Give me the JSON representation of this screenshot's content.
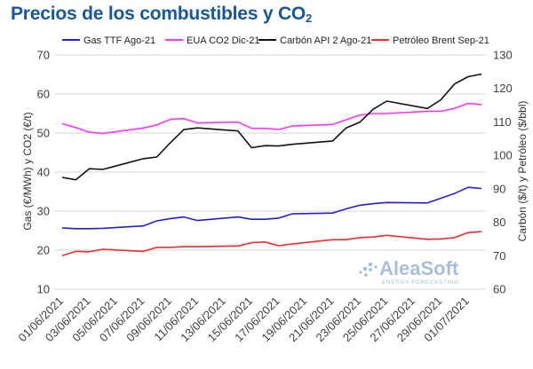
{
  "title_main": "Precios de los combustibles y CO",
  "title_sub": "2",
  "watermark": {
    "name": "AleaSoft",
    "tagline": "ENERGY FORECASTING"
  },
  "colors": {
    "gas": "#1f1fe0",
    "eua": "#ff33ff",
    "coal": "#111111",
    "brent": "#ff2a2a",
    "grid": "#d6d6d6",
    "title": "#17579e"
  },
  "chart_data": {
    "type": "line",
    "title": "Precios de los combustibles y CO2",
    "ylabel_left": "Gas (€/MWh) y CO2 (€/t)",
    "ylabel_right": "Carbón ($/t) y Petróleo ($/bbl)",
    "ylim_left": [
      10,
      70
    ],
    "ylim_right": [
      60,
      130
    ],
    "yticks_left": [
      10,
      20,
      30,
      40,
      50,
      60,
      70
    ],
    "yticks_right": [
      60,
      70,
      80,
      90,
      100,
      110,
      120,
      130
    ],
    "grid": true,
    "legend_position": "top",
    "x": [
      "01/06/2021",
      "02/06/2021",
      "03/06/2021",
      "04/06/2021",
      "07/06/2021",
      "08/06/2021",
      "09/06/2021",
      "10/06/2021",
      "11/06/2021",
      "14/06/2021",
      "15/06/2021",
      "16/06/2021",
      "17/06/2021",
      "18/06/2021",
      "21/06/2021",
      "22/06/2021",
      "23/06/2021",
      "24/06/2021",
      "25/06/2021",
      "28/06/2021",
      "29/06/2021",
      "30/06/2021",
      "01/07/2021",
      "02/07/2021"
    ],
    "x_tick_labels": [
      "01/06/2021",
      "03/06/2021",
      "05/06/2021",
      "07/06/2021",
      "09/06/2021",
      "11/06/2021",
      "13/06/2021",
      "15/06/2021",
      "17/06/2021",
      "19/06/2021",
      "21/06/2021",
      "23/06/2021",
      "25/06/2021",
      "27/06/2021",
      "29/06/2021",
      "01/07/2021"
    ],
    "series": [
      {
        "name": "Gas TTF Ago-21",
        "axis": "left",
        "color": "#1f1fe0",
        "values": [
          25.7,
          25.5,
          25.5,
          25.6,
          26.2,
          27.5,
          28.1,
          28.5,
          27.6,
          28.5,
          27.9,
          27.9,
          28.2,
          29.3,
          29.5,
          30.6,
          31.5,
          31.9,
          32.2,
          32.1,
          33.3,
          34.5,
          36.1,
          35.8
        ]
      },
      {
        "name": "EUA CO2 Dic-21",
        "axis": "left",
        "color": "#ff33ff",
        "values": [
          52.4,
          51.4,
          50.2,
          49.9,
          51.3,
          52.1,
          53.5,
          53.7,
          52.6,
          52.8,
          51.2,
          51.2,
          50.9,
          51.8,
          52.2,
          53.4,
          54.6,
          55.0,
          55.0,
          55.6,
          55.6,
          56.3,
          57.6,
          57.3
        ]
      },
      {
        "name": "Carbón API 2 Ago-21",
        "axis": "right",
        "color": "#111111",
        "values": [
          93.4,
          92.7,
          96.0,
          95.8,
          99.0,
          99.5,
          103.8,
          107.7,
          108.2,
          107.3,
          102.3,
          102.9,
          102.8,
          103.3,
          104.3,
          108.2,
          109.9,
          113.8,
          116.2,
          114.0,
          116.6,
          121.3,
          123.5,
          124.3
        ]
      },
      {
        "name": "Petróleo Brent Sep-21",
        "axis": "right",
        "color": "#ff2a2a",
        "values": [
          70.0,
          71.3,
          71.2,
          71.9,
          71.3,
          72.5,
          72.5,
          72.7,
          72.7,
          72.9,
          73.9,
          74.1,
          73.0,
          73.5,
          74.8,
          74.8,
          75.4,
          75.6,
          76.1,
          74.9,
          75.0,
          75.4,
          76.9,
          77.2
        ]
      }
    ]
  }
}
